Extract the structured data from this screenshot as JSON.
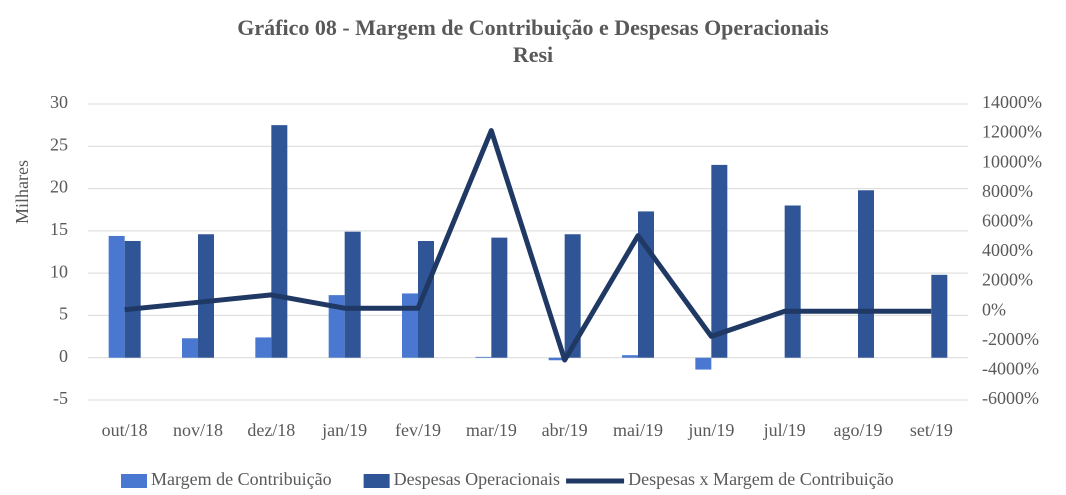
{
  "chart_data": {
    "type": "bar_line",
    "title": "Gráfico 08 - Margem de Contribuição e Despesas Operacionais Resi",
    "y_label": "Milhares",
    "categories": [
      "out/18",
      "nov/18",
      "dez/18",
      "jan/19",
      "fev/19",
      "mar/19",
      "abr/19",
      "mai/19",
      "jun/19",
      "jul/19",
      "ago/19",
      "set/19"
    ],
    "series": [
      {
        "name": "Margem de Contribuição",
        "type": "bar",
        "color": "#4a78d0",
        "values": [
          14.4,
          2.3,
          2.4,
          7.4,
          7.6,
          0.1,
          -0.3,
          0.3,
          -1.4,
          0,
          0,
          0
        ]
      },
      {
        "name": "Despesas Operacionais",
        "type": "bar",
        "color": "#2f5597",
        "values": [
          13.8,
          14.6,
          27.5,
          14.9,
          13.8,
          14.2,
          14.6,
          17.3,
          22.8,
          18.0,
          19.8,
          9.8
        ]
      },
      {
        "name": "Despesas x Margem de Contribuição",
        "type": "line",
        "axis": "y2",
        "color": "#1f3864",
        "values": [
          100,
          600,
          1100,
          200,
          200,
          12200,
          -3300,
          5100,
          -1700,
          0,
          0,
          0
        ]
      }
    ],
    "ylim": [
      -5,
      30
    ],
    "yticks": [
      -5,
      0,
      5,
      10,
      15,
      20,
      25,
      30
    ],
    "y2lim": [
      -6000,
      14000
    ],
    "y2ticks": [
      {
        "value": -6000,
        "label": "-6000%"
      },
      {
        "value": -4000,
        "label": "-4000%"
      },
      {
        "value": -2000,
        "label": "-2000%"
      },
      {
        "value": 0,
        "label": "0%"
      },
      {
        "value": 2000,
        "label": "2000%"
      },
      {
        "value": 4000,
        "label": "4000%"
      },
      {
        "value": 6000,
        "label": "6000%"
      },
      {
        "value": 8000,
        "label": "8000%"
      },
      {
        "value": 10000,
        "label": "10000%"
      },
      {
        "value": 12000,
        "label": "12000%"
      },
      {
        "value": 14000,
        "label": "14000%"
      }
    ],
    "grid": true,
    "legend": "bottom"
  }
}
